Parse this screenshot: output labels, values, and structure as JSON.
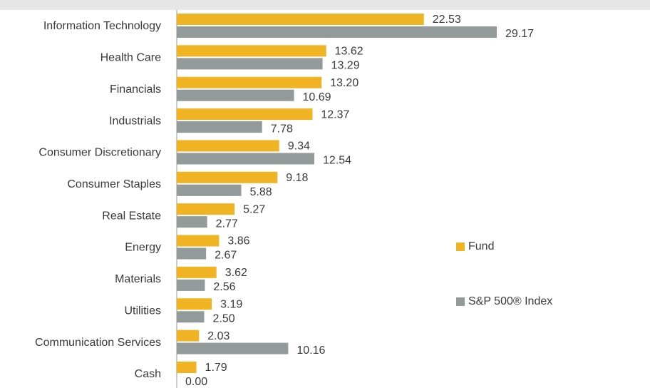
{
  "chart_data": {
    "type": "bar",
    "orientation": "horizontal",
    "categories": [
      "Information Technology",
      "Health Care",
      "Financials",
      "Industrials",
      "Consumer Discretionary",
      "Consumer Staples",
      "Real Estate",
      "Energy",
      "Materials",
      "Utilities",
      "Communication Services",
      "Cash"
    ],
    "series": [
      {
        "name": "Fund",
        "color": "#f0b323",
        "values": [
          22.53,
          13.62,
          13.2,
          12.37,
          9.34,
          9.18,
          5.27,
          3.86,
          3.62,
          3.19,
          2.03,
          1.79
        ],
        "value_labels": [
          "22.53",
          "13.62",
          "13.20",
          "12.37",
          "9.34",
          "9.18",
          "5.27",
          "3.86",
          "3.62",
          "3.19",
          "2.03",
          "1.79"
        ]
      },
      {
        "name": "S&P 500® Index",
        "color": "#939a9a",
        "values": [
          29.17,
          13.29,
          10.69,
          7.78,
          12.54,
          5.88,
          2.77,
          2.67,
          2.56,
          2.5,
          10.16,
          0
        ],
        "value_labels": [
          "29.17",
          "13.29",
          "10.69",
          "7.78",
          "12.54",
          "5.88",
          "2.77",
          "2.67",
          "2.56",
          "2.50",
          "10.16",
          "0.00"
        ]
      }
    ],
    "legend": "right"
  }
}
